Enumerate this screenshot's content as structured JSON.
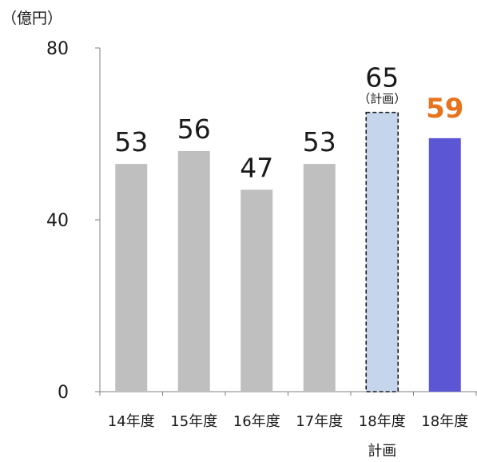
{
  "chart_data": {
    "type": "bar",
    "unit_label": "（億円）",
    "ylim": [
      0,
      80
    ],
    "yticks": [
      0,
      40,
      80
    ],
    "grid": false,
    "categories": [
      {
        "line1": "14年度",
        "line2": ""
      },
      {
        "line1": "15年度",
        "line2": ""
      },
      {
        "line1": "16年度",
        "line2": ""
      },
      {
        "line1": "17年度",
        "line2": ""
      },
      {
        "line1": "18年度",
        "line2": "計画"
      },
      {
        "line1": "18年度",
        "line2": ""
      }
    ],
    "values": [
      53,
      56,
      47,
      53,
      65,
      59
    ],
    "value_labels": [
      "53",
      "56",
      "47",
      "53",
      "65",
      "59"
    ],
    "sub_labels": [
      "",
      "",
      "",
      "",
      "（計画）",
      ""
    ],
    "bar_styles": [
      "actual",
      "actual",
      "actual",
      "actual",
      "plan",
      "latest"
    ],
    "label_styles": [
      "normal",
      "normal",
      "normal",
      "normal",
      "normal",
      "highlight"
    ]
  },
  "colors": {
    "actual_bar": "#bfbfbf",
    "plan_bar": "#c5d5ec",
    "plan_border": "#1a1a1a",
    "latest_bar": "#5b57d4",
    "highlight_label": "#e8731d",
    "axis": "#808080",
    "text": "#1a1a1a"
  }
}
